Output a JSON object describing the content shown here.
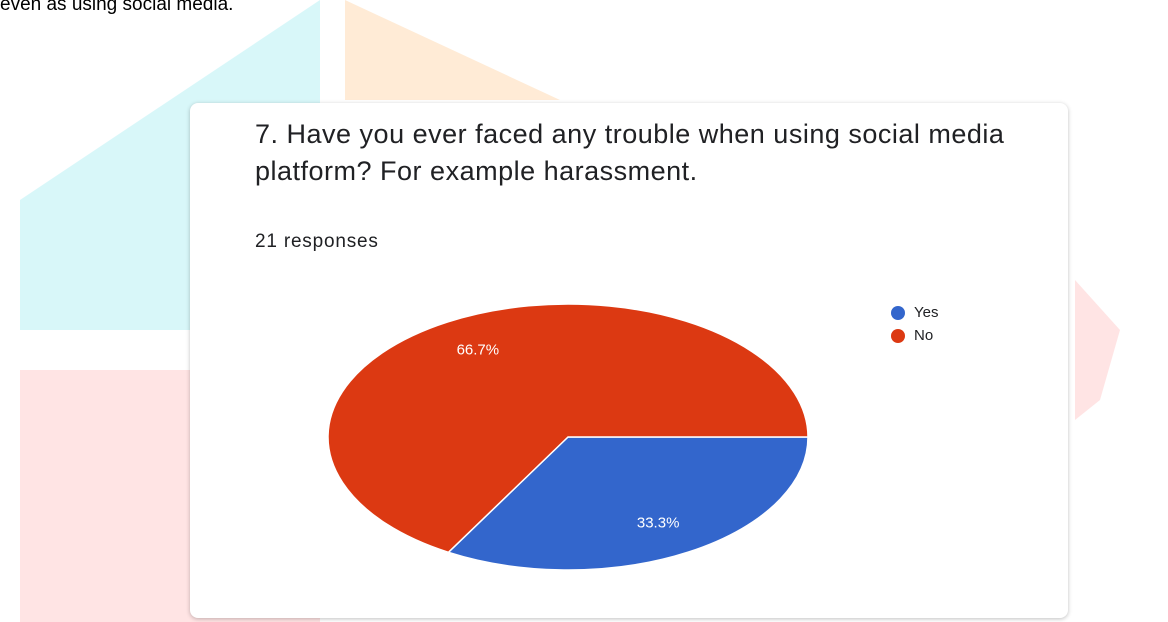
{
  "document_text": "even as using social media.",
  "chart_data": {
    "type": "pie",
    "title": "7. Have you ever faced any trouble when using social media platform? For example harassment.",
    "subtitle": "21 responses",
    "categories": [
      "Yes",
      "No"
    ],
    "values": [
      33.3,
      66.7
    ],
    "value_labels": [
      "33.3%",
      "66.7%"
    ],
    "colors": [
      "#3366cc",
      "#dc3912"
    ],
    "legend": "top-right"
  }
}
